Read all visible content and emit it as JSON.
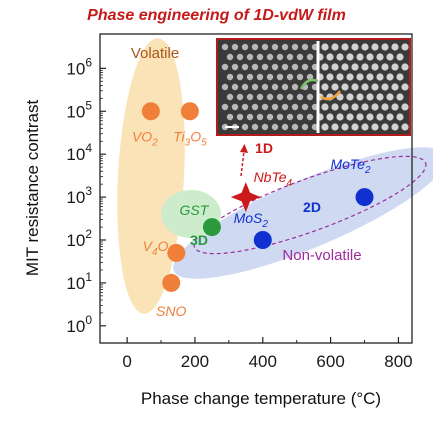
{
  "chart_data": {
    "type": "scatter",
    "title": "Phase engineering of 1D-vdW film",
    "xlabel": "Phase change temperature (°C)",
    "ylabel": "MIT resistance contrast",
    "xlim": [
      -80,
      840
    ],
    "ylim_log10": [
      -0.4,
      6.8
    ],
    "xscale": "linear",
    "yscale": "log",
    "x_ticks": [
      0,
      200,
      400,
      600,
      800
    ],
    "y_ticks": [
      {
        "base": "10",
        "exp": "0",
        "value": 1
      },
      {
        "base": "10",
        "exp": "1",
        "value": 10
      },
      {
        "base": "10",
        "exp": "2",
        "value": 100
      },
      {
        "base": "10",
        "exp": "3",
        "value": 1000
      },
      {
        "base": "10",
        "exp": "4",
        "value": 10000
      },
      {
        "base": "10",
        "exp": "5",
        "value": 100000
      },
      {
        "base": "10",
        "exp": "6",
        "value": 1000000
      }
    ],
    "grid": false,
    "colors": {
      "volatile": "#f07f3a",
      "volatile_region": "#fbe3b8",
      "volatile_label": "#a8561c",
      "gst": "#2a9a3a",
      "gst_region": "#cdeccb",
      "non_volatile": "#1030d0",
      "non_volatile_region": "#cfd9f2",
      "nbte4": "#cc1a1a",
      "non_volatile_outline": "#9b2d9b"
    },
    "regions": [
      {
        "id": "volatile",
        "label": "Volatile",
        "color": "#fbe3b8"
      },
      {
        "id": "gst",
        "label": "",
        "color": "#cdeccb"
      },
      {
        "id": "non-volatile",
        "label": "Non-volatile",
        "color": "#cfd9f2"
      }
    ],
    "points": [
      {
        "label": "VO",
        "sub": "2",
        "tail": "",
        "x": 70,
        "y": 100000,
        "group": "volatile",
        "color": "#f07f3a"
      },
      {
        "label": "Ti",
        "sub": "3",
        "tail": "O",
        "sub2": "5",
        "x": 185,
        "y": 100000,
        "group": "volatile",
        "color": "#f07f3a"
      },
      {
        "label": "V",
        "sub": "4",
        "tail": "O",
        "sub2": "7",
        "x": 145,
        "y": 50,
        "group": "volatile",
        "color": "#f07f3a"
      },
      {
        "label": "SNO",
        "sub": "",
        "tail": "",
        "x": 130,
        "y": 10,
        "group": "volatile",
        "color": "#f07f3a"
      },
      {
        "label": "GST",
        "sub": "",
        "tail": "",
        "x": 250,
        "y": 200,
        "group": "gst",
        "color": "#2a9a3a"
      },
      {
        "label": "MoS",
        "sub": "2",
        "tail": "",
        "x": 400,
        "y": 100,
        "group": "non-volatile",
        "color": "#1030d0"
      },
      {
        "label": "MoTe",
        "sub": "2",
        "tail": "",
        "x": 700,
        "y": 1000,
        "group": "non-volatile",
        "color": "#1030d0"
      },
      {
        "label": "NbTe",
        "sub": "4",
        "tail": "",
        "x": 350,
        "y": 1000,
        "group": "this-work",
        "color": "#cc1a1a",
        "marker": "star"
      }
    ],
    "annotations": [
      {
        "text": "Volatile"
      },
      {
        "text": "Non-volatile"
      },
      {
        "text": "3D"
      },
      {
        "text": "2D"
      },
      {
        "text": "1D"
      }
    ]
  }
}
